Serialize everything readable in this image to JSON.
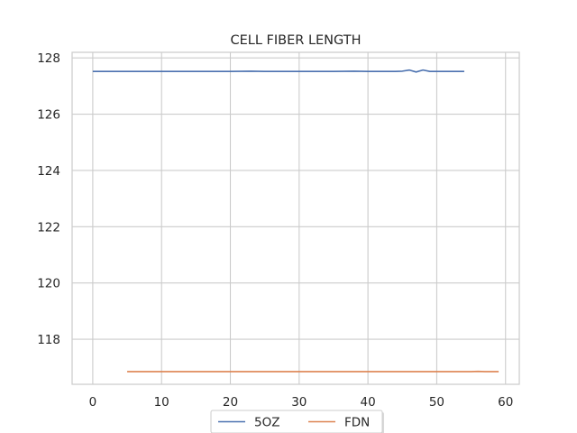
{
  "chart_data": {
    "type": "line",
    "title": "CELL FIBER LENGTH",
    "xlabel": "",
    "ylabel": "",
    "xlim": [
      -3,
      62
    ],
    "ylim": [
      116.4,
      128.2
    ],
    "xticks": [
      0,
      10,
      20,
      30,
      40,
      50,
      60
    ],
    "yticks": [
      118,
      120,
      122,
      124,
      126,
      128
    ],
    "grid": true,
    "legend_position": "bottom-center",
    "series": [
      {
        "name": "5OZ",
        "color": "#4c72b0",
        "x": [
          0,
          5,
          10,
          15,
          20,
          23,
          25,
          30,
          35,
          38,
          40,
          44,
          45,
          46,
          47,
          48,
          49,
          50,
          52,
          54
        ],
        "y": [
          127.52,
          127.52,
          127.52,
          127.52,
          127.52,
          127.53,
          127.52,
          127.52,
          127.52,
          127.53,
          127.52,
          127.52,
          127.53,
          127.57,
          127.5,
          127.57,
          127.52,
          127.52,
          127.52,
          127.52
        ]
      },
      {
        "name": "FDN",
        "color": "#dd8452",
        "x": [
          5,
          10,
          15,
          20,
          25,
          30,
          35,
          40,
          45,
          50,
          55,
          56,
          57,
          58,
          59
        ],
        "y": [
          116.85,
          116.85,
          116.85,
          116.85,
          116.85,
          116.85,
          116.85,
          116.85,
          116.85,
          116.85,
          116.85,
          116.86,
          116.85,
          116.85,
          116.85
        ]
      }
    ]
  }
}
